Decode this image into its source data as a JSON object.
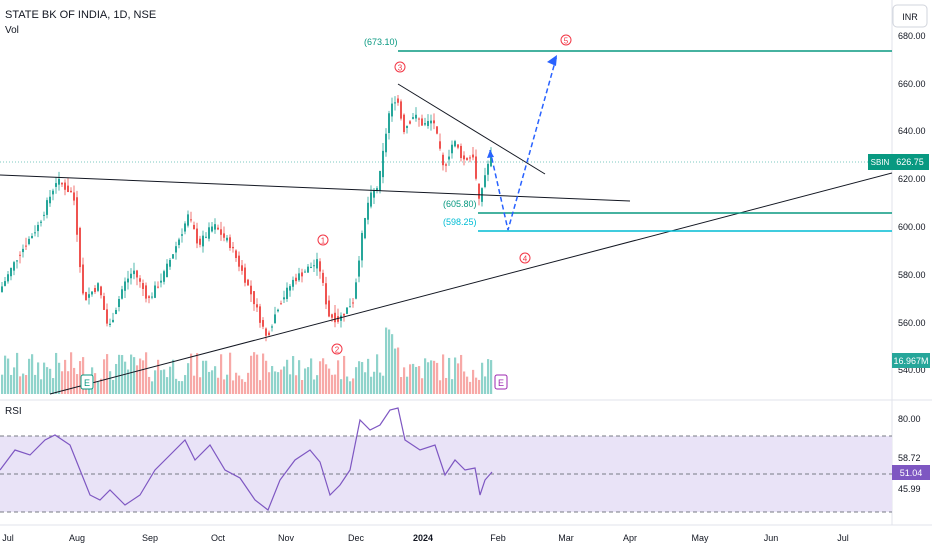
{
  "header": {
    "symbol_title": "STATE BK OF INDIA, 1D, NSE",
    "volume_label": "Vol",
    "currency_button": "INR"
  },
  "price_axis": {
    "ticks": [
      "680.00",
      "660.00",
      "640.00",
      "620.00",
      "600.00",
      "580.00",
      "560.00",
      "540.00"
    ],
    "last_price_symbol": "SBIN",
    "last_price": "626.75",
    "volume_value": "16.967M"
  },
  "rsi": {
    "label": "RSI",
    "ticks": [
      "80.00",
      "58.72",
      "45.99"
    ],
    "current_value": "51.04",
    "fill_color": "#e9e3f7",
    "line_color": "#7e57c2"
  },
  "time_axis": {
    "labels": [
      "Jul",
      "Aug",
      "Sep",
      "Oct",
      "Nov",
      "Dec",
      "2024",
      "Feb",
      "Mar",
      "Apr",
      "May",
      "Jun",
      "Jul"
    ]
  },
  "annotations": {
    "target_label": "(673.10)",
    "support_label_1": "(605.80)",
    "support_label_2": "(598.25)",
    "wave_1": "1",
    "wave_2": "2",
    "wave_3": "3",
    "wave_4": "4",
    "wave_5": "5",
    "earnings_marker": "E"
  },
  "colors": {
    "bull": "#26a69a",
    "bear": "#ef5350",
    "bull_vol": "#8fd3cb",
    "bear_vol": "#f7a9a7",
    "target_line": "#089981",
    "support_line": "#00bcd4",
    "projection": "#2962ff",
    "wave_label": "#f23645"
  },
  "chart_data": {
    "type": "candlestick",
    "price_range": [
      535,
      685
    ],
    "rsi_range": [
      20,
      90
    ],
    "levels": [
      673.1,
      605.8,
      598.25
    ],
    "last_price": 626.75
  }
}
